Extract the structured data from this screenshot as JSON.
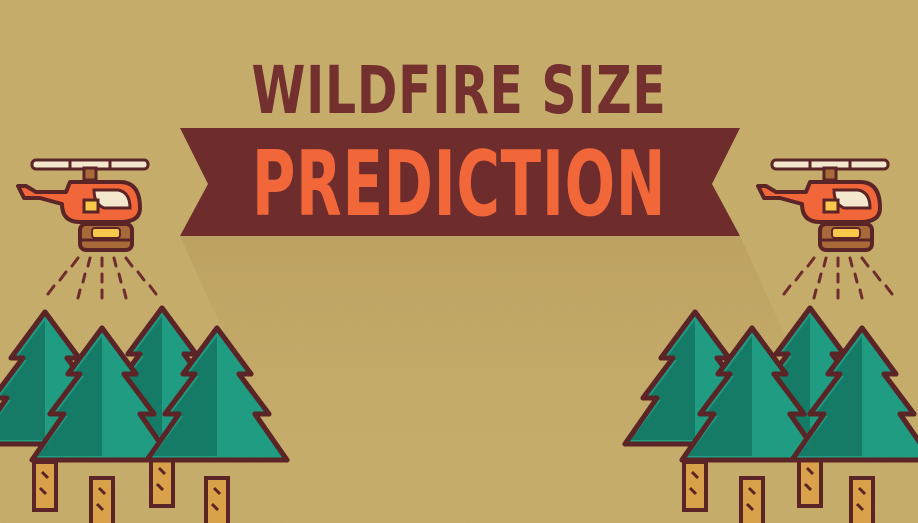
{
  "title": {
    "line1": "WILDFIRE SIZE",
    "line2": "PREDICTION"
  },
  "colors": {
    "background": "#c9af6c",
    "banner": "#6e2d2c",
    "banner_text": "#f2673a",
    "title_text": "#74302f",
    "tree_light": "#1f9c82",
    "tree_dark": "#157a66",
    "tree_outline": "#5b2426",
    "trunk": "#d9a24a",
    "helicopter_body": "#f2673a",
    "helicopter_blade": "#f3e8cd",
    "water_tank": "#a96a3a"
  },
  "icons": [
    "helicopter-icon",
    "pine-tree-icon",
    "ribbon-banner"
  ]
}
